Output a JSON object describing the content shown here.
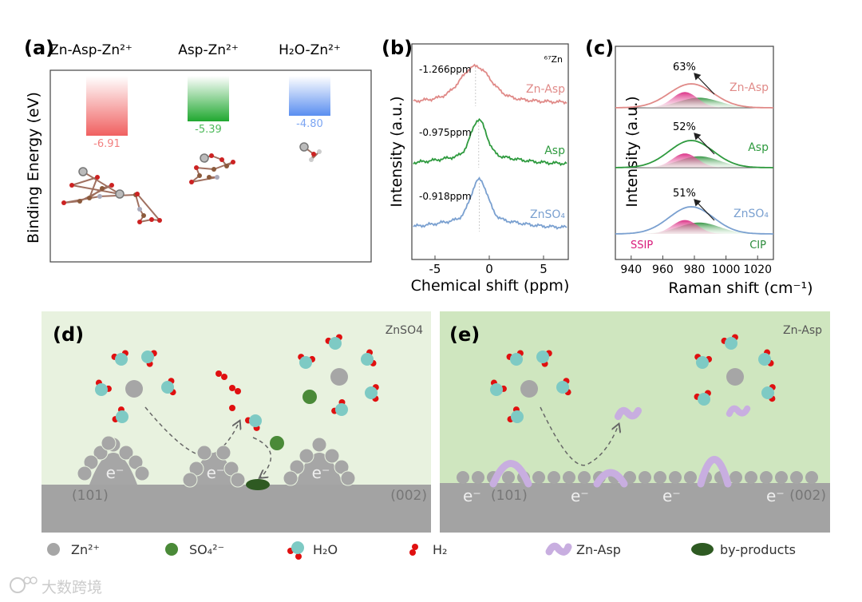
{
  "panels": {
    "a": {
      "label": "(a)"
    },
    "b": {
      "label": "(b)"
    },
    "c": {
      "label": "(c)"
    },
    "d": {
      "label": "(d)",
      "electrolyte": "ZnSO4",
      "facet_left": "(101)",
      "facet_right": "(002)",
      "electron": "e⁻"
    },
    "e": {
      "label": "(e)",
      "electrolyte": "Zn-Asp",
      "facet_left": "(101)",
      "facet_right": "(002)",
      "electron": "e⁻"
    }
  },
  "legend": [
    {
      "label": "Zn²⁺",
      "color": "#a6a6a6"
    },
    {
      "label": "SO₄²⁻",
      "color": "#4a8a38"
    },
    {
      "label": "H₂O",
      "color": "#7ecac4"
    },
    {
      "label": "H₂",
      "color": "#e01010"
    },
    {
      "label": "Zn-Asp",
      "color": "#c8aee0"
    },
    {
      "label": "by-products",
      "color": "#2e5a22"
    }
  ],
  "watermark": "大数跨境",
  "chart_data": [
    {
      "id": "a",
      "type": "bar",
      "title": "",
      "categories": [
        "Zn-Asp-Zn²⁺",
        "Asp-Zn²⁺",
        "H₂O-Zn²⁺"
      ],
      "values": [
        -6.91,
        -5.39,
        -4.8
      ],
      "value_labels": [
        "-6.91",
        "-5.39",
        "-4.80"
      ],
      "colors": [
        "#f06060",
        "#20a830",
        "#5a8ef0"
      ],
      "ylabel": "Binding  Energy (eV)",
      "xlabel": "",
      "ylim": [
        -8,
        0
      ]
    },
    {
      "id": "b",
      "type": "line",
      "xlabel": "Chemical shift (ppm)",
      "ylabel": "Intensity (a.u.)",
      "xlim": [
        -7,
        7
      ],
      "xticks": [
        "-5",
        "0",
        "5"
      ],
      "xtick_values": [
        -5,
        0,
        5
      ],
      "annotation": "⁶⁷Zn",
      "series": [
        {
          "name": "Zn-Asp",
          "peak_ppm": -1.266,
          "peak_label": "-1.266ppm",
          "color": "#e08a88"
        },
        {
          "name": "Asp",
          "peak_ppm": -0.975,
          "peak_label": "-0.975ppm",
          "color": "#2e9a3e"
        },
        {
          "name": "ZnSO₄",
          "peak_ppm": -0.918,
          "peak_label": "-0.918ppm",
          "color": "#7aa0d0"
        }
      ]
    },
    {
      "id": "c",
      "type": "area",
      "xlabel": "Raman shift (cm⁻¹)",
      "ylabel": "Intensity (a.u.)",
      "xlim": [
        930,
        1030
      ],
      "xticks": [
        "940",
        "960",
        "980",
        "1000",
        "1020"
      ],
      "xtick_values": [
        940,
        960,
        980,
        1000,
        1020
      ],
      "components": [
        "SSIP",
        "CIP"
      ],
      "component_colors": [
        "#d81b7a",
        "#2a8a3a"
      ],
      "series": [
        {
          "name": "Zn-Asp",
          "ssip_percent": 63,
          "ssip_label": "63%",
          "color": "#e08a88"
        },
        {
          "name": "Asp",
          "ssip_percent": 52,
          "ssip_label": "52%",
          "color": "#2e9a3e"
        },
        {
          "name": "ZnSO₄",
          "ssip_percent": 51,
          "ssip_label": "51%",
          "color": "#7aa0d0"
        }
      ]
    }
  ]
}
